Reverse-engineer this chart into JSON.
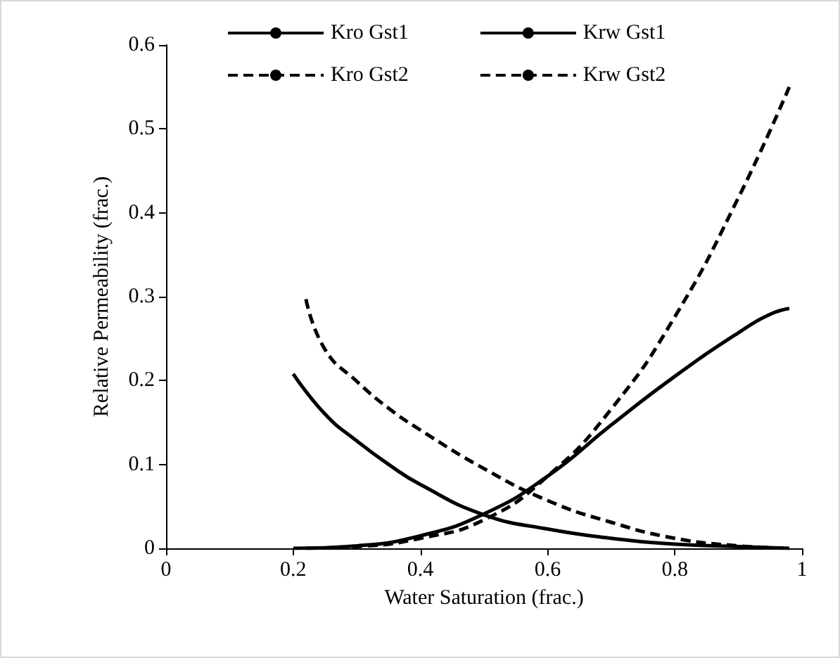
{
  "chart_data": {
    "type": "line",
    "xlabel": "Water Saturation (frac.)",
    "ylabel": "Relative Permeability (frac.)",
    "xlim": [
      0,
      1
    ],
    "xticks": [
      0,
      0.2,
      0.4,
      0.6,
      0.8,
      1
    ],
    "ylim": [
      0,
      0.6
    ],
    "yticks": [
      0,
      0.1,
      0.2,
      0.3,
      0.4,
      0.5,
      0.6
    ],
    "grid": false,
    "legend": "top",
    "marker": "none",
    "series": [
      {
        "name": "Kro Gst1",
        "color": "#000000",
        "line_style": "solid",
        "x": [
          0.2,
          0.25,
          0.3,
          0.35,
          0.4,
          0.5,
          0.6,
          0.7,
          0.8,
          0.9,
          0.98
        ],
        "values": [
          0.208,
          0.16,
          0.128,
          0.1,
          0.076,
          0.04,
          0.023,
          0.012,
          0.005,
          0.002,
          0
        ]
      },
      {
        "name": "Krw Gst1",
        "color": "#000000",
        "line_style": "solid",
        "x": [
          0.2,
          0.3,
          0.4,
          0.5,
          0.6,
          0.7,
          0.8,
          0.9,
          0.95,
          0.98
        ],
        "values": [
          0,
          0.003,
          0.015,
          0.041,
          0.086,
          0.147,
          0.205,
          0.257,
          0.279,
          0.286
        ]
      },
      {
        "name": "Kro Gst2",
        "color": "#000000",
        "line_style": "dashed",
        "x": [
          0.22,
          0.25,
          0.3,
          0.35,
          0.4,
          0.5,
          0.6,
          0.7,
          0.8,
          0.9,
          0.98
        ],
        "values": [
          0.297,
          0.237,
          0.199,
          0.167,
          0.141,
          0.095,
          0.057,
          0.031,
          0.012,
          0.003,
          0
        ]
      },
      {
        "name": "Krw Gst2",
        "color": "#000000",
        "line_style": "dashed",
        "x": [
          0.22,
          0.3,
          0.4,
          0.5,
          0.6,
          0.7,
          0.8,
          0.9,
          0.98
        ],
        "values": [
          0,
          0.002,
          0.012,
          0.034,
          0.086,
          0.166,
          0.276,
          0.418,
          0.55
        ]
      }
    ]
  }
}
